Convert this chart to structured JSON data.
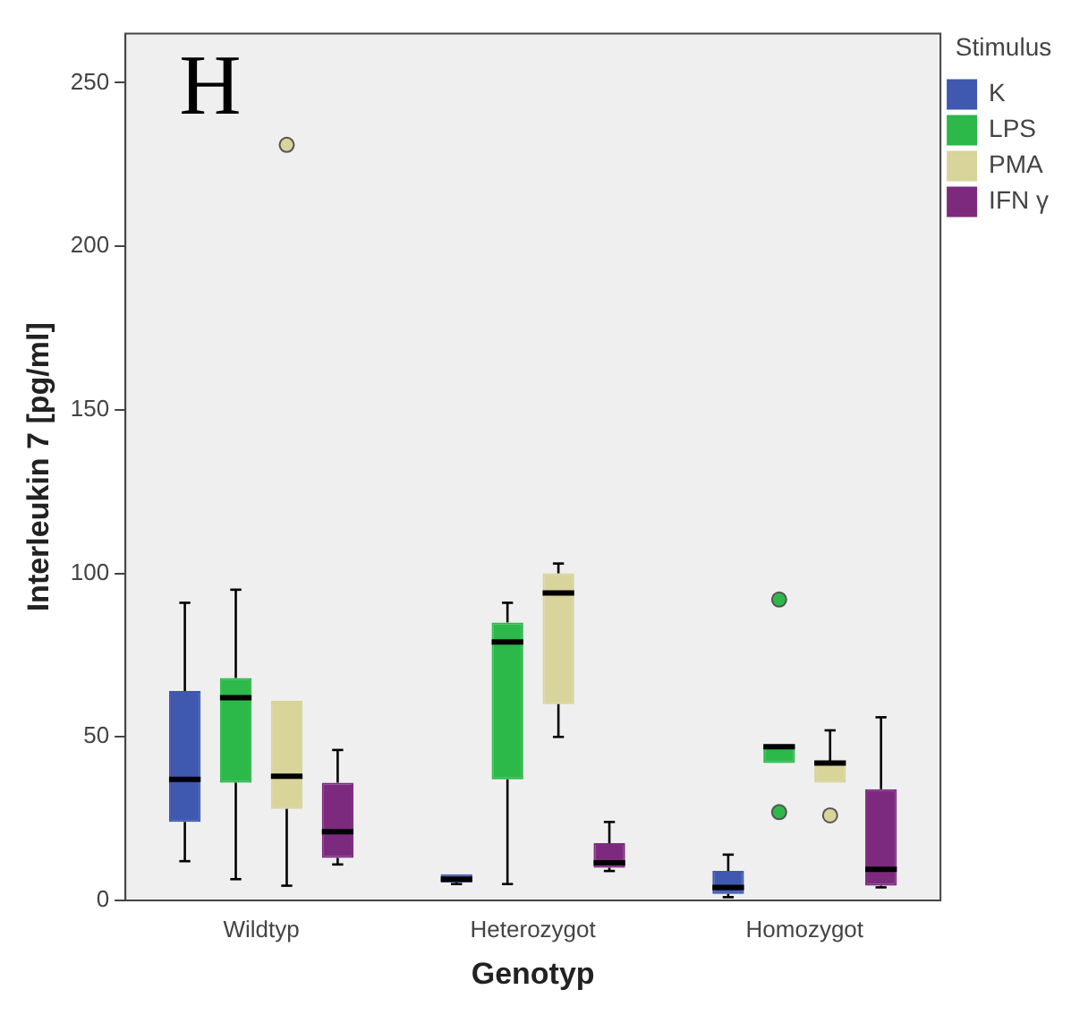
{
  "chart_data": {
    "type": "box",
    "xlabel": "Genotyp",
    "ylabel": "Interleukin 7 [pg/ml]",
    "legend_title": "Stimulus",
    "annotations": [
      "H"
    ],
    "categories": [
      "Wildtyp",
      "Heterozygot",
      "Homozygot"
    ],
    "ylim": [
      0,
      265
    ],
    "yticks": [
      0,
      50,
      100,
      150,
      200,
      250
    ],
    "grid": false,
    "legend": "top right",
    "series": [
      {
        "name": "K",
        "color": "#3f58b0",
        "boxes": [
          {
            "low": 12,
            "q1": 24,
            "median": 37,
            "q3": 64,
            "high": 91
          },
          {
            "low": 5,
            "q1": 5.5,
            "median": 6.5,
            "q3": 8,
            "high": 8
          },
          {
            "low": 1,
            "q1": 2,
            "median": 4,
            "q3": 9,
            "high": 14
          }
        ]
      },
      {
        "name": "LPS",
        "color": "#2db84a",
        "boxes": [
          {
            "low": 6.5,
            "q1": 36,
            "median": 62,
            "q3": 68,
            "high": 95
          },
          {
            "low": 5,
            "q1": 37,
            "median": 79,
            "q3": 85,
            "high": 91
          },
          {
            "low": 42,
            "q1": 42,
            "median": 47,
            "q3": 47.5,
            "high": 47.5,
            "outliers": [
              27,
              92
            ]
          }
        ]
      },
      {
        "name": "PMA",
        "color": "#d8d49a",
        "boxes": [
          {
            "low": 4.5,
            "q1": 28,
            "median": 38,
            "q3": 61,
            "high": 61,
            "outliers": [
              231
            ]
          },
          {
            "low": 50,
            "q1": 60,
            "median": 94,
            "q3": 100,
            "high": 103
          },
          {
            "low": 36,
            "q1": 36,
            "median": 42,
            "q3": 42,
            "high": 52,
            "outliers": [
              26
            ]
          }
        ]
      },
      {
        "name": "IFN γ",
        "color": "#7b2a7e",
        "boxes": [
          {
            "low": 11,
            "q1": 13,
            "median": 21,
            "q3": 36,
            "high": 46
          },
          {
            "low": 9,
            "q1": 10,
            "median": 11.5,
            "q3": 17.5,
            "high": 24
          },
          {
            "low": 4,
            "q1": 4.5,
            "median": 9.5,
            "q3": 34,
            "high": 56
          }
        ]
      }
    ]
  }
}
